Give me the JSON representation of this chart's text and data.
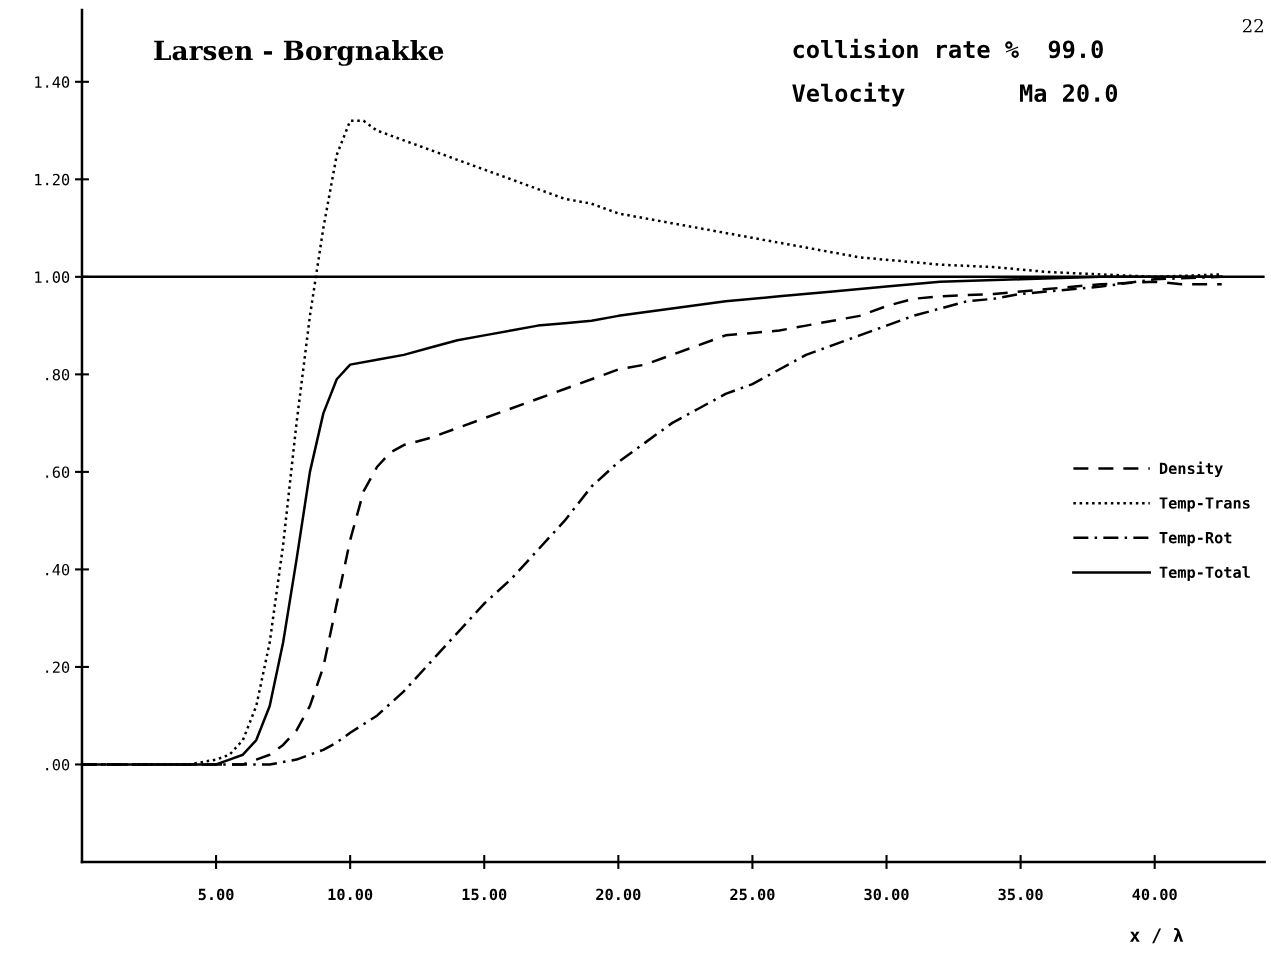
{
  "chart_data": {
    "type": "line",
    "title": "Larsen - Borgnakke",
    "xlabel": "x / λ",
    "annotations": [
      "collision rate %  99.0",
      "Velocity        Ma 20.0",
      "22"
    ],
    "xlim": [
      0,
      44.1
    ],
    "ylim": [
      -0.2,
      1.547
    ],
    "xticks": [
      {
        "value": 5,
        "label": "5.00"
      },
      {
        "value": 10,
        "label": "10.00"
      },
      {
        "value": 15,
        "label": "15.00"
      },
      {
        "value": 20,
        "label": "20.00"
      },
      {
        "value": 25,
        "label": "25.00"
      },
      {
        "value": 30,
        "label": "30.00"
      },
      {
        "value": 35,
        "label": "35.00"
      },
      {
        "value": 40,
        "label": "40.00"
      }
    ],
    "yticks": [
      {
        "value": 0,
        "label": ".00"
      },
      {
        "value": 0.2,
        "label": ".20"
      },
      {
        "value": 0.4,
        "label": ".40"
      },
      {
        "value": 0.6,
        "label": ".60"
      },
      {
        "value": 0.8,
        "label": ".80"
      },
      {
        "value": 1.0,
        "label": "1.00"
      },
      {
        "value": 1.2,
        "label": "1.20"
      },
      {
        "value": 1.4,
        "label": "1.40"
      }
    ],
    "ref_lines": [
      {
        "axis": "y",
        "value": 1.0,
        "color": "#000000",
        "line_style": "solid"
      }
    ],
    "legend": "right",
    "grid": false,
    "series": [
      {
        "name": "Density",
        "color": "#000000",
        "line_style": "dashed",
        "x": [
          0,
          6,
          6.5,
          7,
          7.5,
          8,
          8.5,
          9,
          9.5,
          10,
          10.5,
          11,
          11.5,
          12,
          13,
          14,
          15,
          16,
          17,
          18,
          19,
          20,
          21,
          22,
          23,
          24,
          25,
          26,
          27,
          28,
          29,
          30,
          31,
          32,
          34,
          36,
          38,
          40,
          41,
          42.5
        ],
        "values": [
          0,
          0,
          0.01,
          0.02,
          0.04,
          0.07,
          0.12,
          0.2,
          0.33,
          0.46,
          0.56,
          0.61,
          0.64,
          0.655,
          0.67,
          0.69,
          0.71,
          0.73,
          0.75,
          0.77,
          0.79,
          0.81,
          0.82,
          0.84,
          0.86,
          0.88,
          0.885,
          0.89,
          0.9,
          0.91,
          0.92,
          0.94,
          0.955,
          0.96,
          0.965,
          0.975,
          0.985,
          0.99,
          0.985,
          0.985
        ]
      },
      {
        "name": "Temp-Trans",
        "color": "#000000",
        "line_style": "dotted",
        "x": [
          0,
          4,
          5,
          5.5,
          6,
          6.5,
          7,
          7.5,
          8,
          8.5,
          9,
          9.5,
          10,
          10.5,
          11,
          12,
          13,
          14,
          15,
          16,
          17,
          18,
          19,
          20,
          21,
          22,
          23,
          24,
          25,
          26,
          27,
          28,
          29,
          30,
          32,
          34,
          36,
          38,
          40,
          42.5
        ],
        "values": [
          0,
          0,
          0.01,
          0.02,
          0.05,
          0.12,
          0.25,
          0.45,
          0.7,
          0.92,
          1.1,
          1.25,
          1.32,
          1.32,
          1.3,
          1.28,
          1.26,
          1.24,
          1.22,
          1.2,
          1.18,
          1.16,
          1.15,
          1.13,
          1.12,
          1.11,
          1.1,
          1.09,
          1.08,
          1.07,
          1.06,
          1.05,
          1.04,
          1.035,
          1.025,
          1.02,
          1.01,
          1.005,
          1.0,
          1.005
        ]
      },
      {
        "name": "Temp-Rot",
        "color": "#000000",
        "line_style": "dashdot",
        "x": [
          0,
          7,
          8,
          8.5,
          9,
          9.5,
          10,
          11,
          12,
          13,
          14,
          15,
          16,
          17,
          18,
          19,
          20,
          21,
          22,
          23,
          24,
          25,
          26,
          27,
          28,
          29,
          30,
          31,
          32,
          33,
          34,
          35,
          36,
          38,
          40,
          42.5
        ],
        "values": [
          0,
          0,
          0.01,
          0.02,
          0.03,
          0.045,
          0.065,
          0.1,
          0.15,
          0.21,
          0.27,
          0.33,
          0.38,
          0.44,
          0.5,
          0.57,
          0.62,
          0.66,
          0.7,
          0.73,
          0.76,
          0.78,
          0.81,
          0.84,
          0.86,
          0.88,
          0.9,
          0.92,
          0.935,
          0.95,
          0.955,
          0.965,
          0.97,
          0.98,
          0.995,
          1.0
        ]
      },
      {
        "name": "Temp-Total",
        "color": "#000000",
        "line_style": "solid",
        "x": [
          0,
          5,
          5.5,
          6,
          6.5,
          7,
          7.5,
          8,
          8.5,
          9,
          9.5,
          10,
          11,
          12,
          13,
          14,
          15,
          16,
          17,
          18,
          19,
          20,
          22,
          24,
          26,
          28,
          30,
          32,
          35,
          38,
          42.5
        ],
        "values": [
          0,
          0,
          0.01,
          0.02,
          0.05,
          0.12,
          0.25,
          0.42,
          0.6,
          0.72,
          0.79,
          0.82,
          0.83,
          0.84,
          0.855,
          0.87,
          0.88,
          0.89,
          0.9,
          0.905,
          0.91,
          0.92,
          0.935,
          0.95,
          0.96,
          0.97,
          0.98,
          0.99,
          0.995,
          1.0,
          1.0
        ]
      }
    ]
  }
}
